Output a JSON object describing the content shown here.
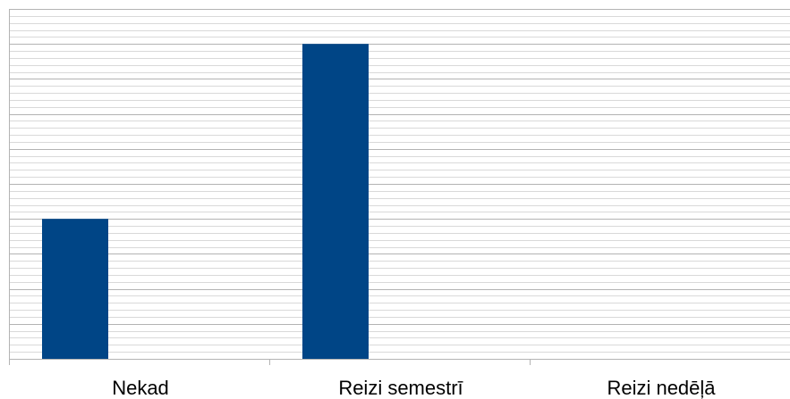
{
  "chart_data": {
    "type": "bar",
    "categories": [
      "Nekad",
      "Reizi semestrī",
      "Reizi nedēļā"
    ],
    "values": [
      4,
      9,
      0
    ],
    "ylim": [
      0,
      10
    ],
    "grid": true,
    "colors": {
      "bar": "#004586",
      "major_grid": "#b3b3b3",
      "minor_grid": "#d9d9d9",
      "axis": "#b3b3b3"
    }
  }
}
